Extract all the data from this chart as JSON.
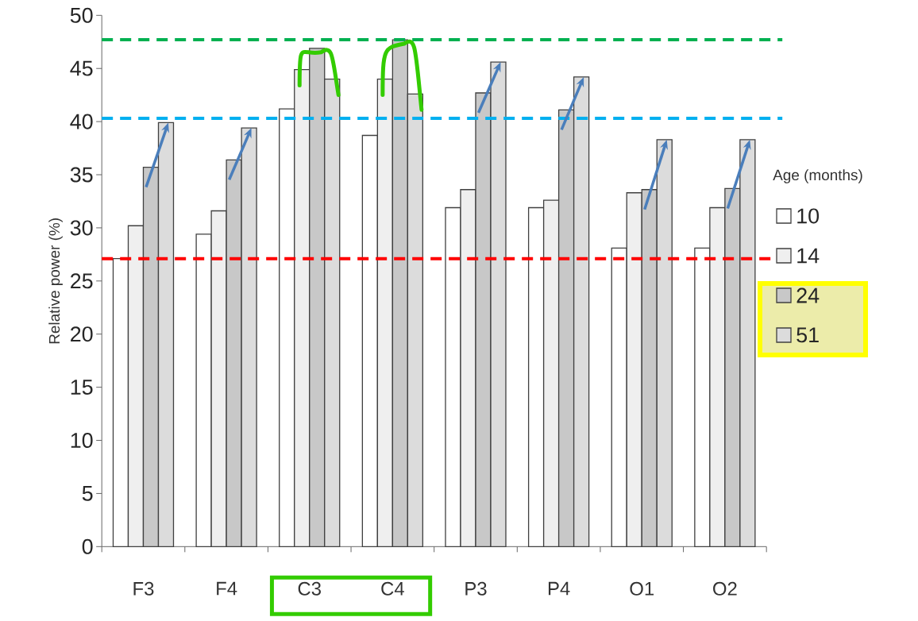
{
  "chart_data": {
    "type": "bar",
    "ylabel": "Relative power (%)",
    "legend_title": "Age (months)",
    "legend": "right",
    "categories": [
      "F3",
      "F4",
      "C3",
      "C4",
      "P3",
      "P4",
      "O1",
      "O2"
    ],
    "series": [
      {
        "name": "10",
        "color": "#ffffff",
        "values": [
          27.1,
          29.4,
          41.2,
          38.7,
          31.9,
          31.9,
          28.1,
          28.1
        ]
      },
      {
        "name": "14",
        "color": "#efefef",
        "values": [
          30.2,
          31.6,
          44.9,
          44.0,
          33.6,
          32.6,
          33.3,
          31.9
        ]
      },
      {
        "name": "24",
        "color": "#c8c8c8",
        "values": [
          35.7,
          36.4,
          46.9,
          47.7,
          42.7,
          41.1,
          33.6,
          33.7
        ]
      },
      {
        "name": "51",
        "color": "#dcdcdc",
        "values": [
          39.9,
          39.4,
          44.0,
          42.6,
          45.6,
          44.2,
          38.3,
          38.3
        ]
      }
    ],
    "ylim": [
      0,
      50
    ],
    "yticks": [
      0,
      5,
      10,
      15,
      20,
      25,
      30,
      35,
      40,
      45,
      50
    ],
    "ref_lines": [
      {
        "axis": "y",
        "value": 47.7,
        "color": "#00b050",
        "line_style": "dashed"
      },
      {
        "axis": "y",
        "value": 40.3,
        "color": "#00b0f0",
        "line_style": "dashed"
      },
      {
        "axis": "y",
        "value": 27.1,
        "color": "#ff0000",
        "line_style": "dashed"
      }
    ]
  }
}
